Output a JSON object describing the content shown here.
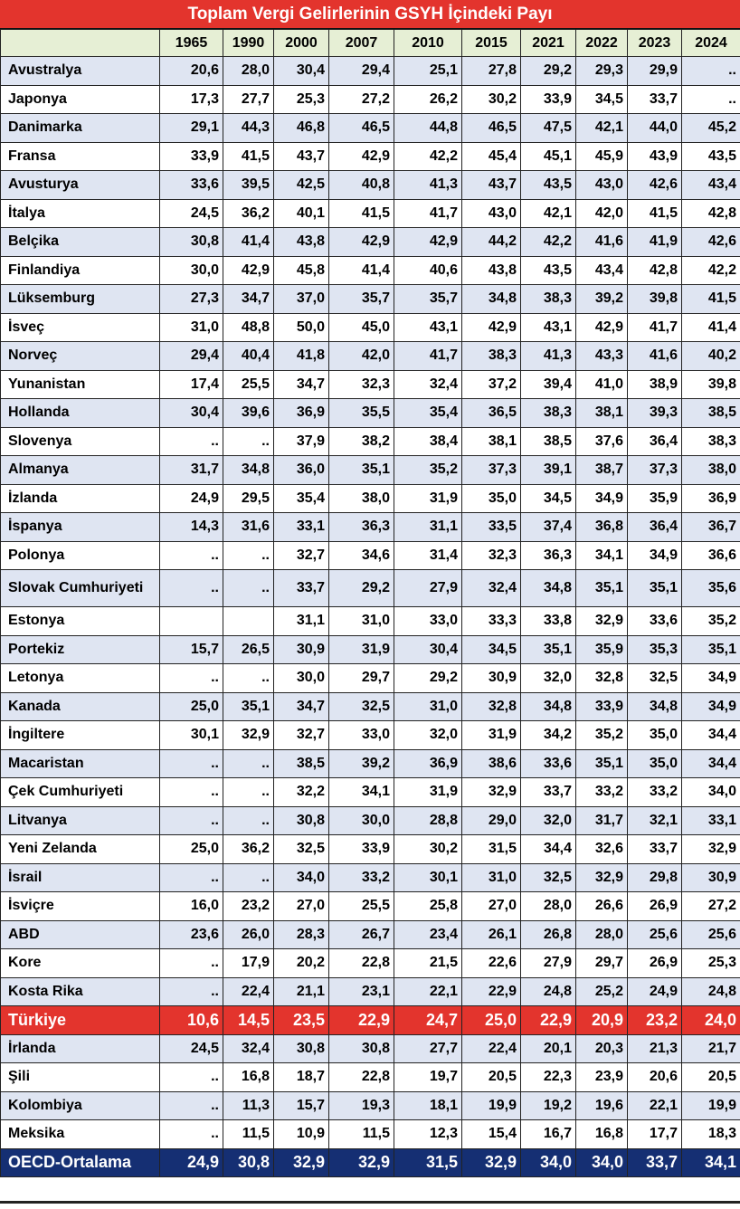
{
  "chart_data": {
    "type": "table",
    "title": "Toplam Vergi Gelirlerinin GSYH İçindeki Payı",
    "columns": [
      "1965",
      "1990",
      "2000",
      "2007",
      "2010",
      "2015",
      "2021",
      "2022",
      "2023",
      "2024"
    ],
    "rows": [
      {
        "country": "Avustralya",
        "values": [
          "20,6",
          "28,0",
          "30,4",
          "29,4",
          "25,1",
          "27,8",
          "29,2",
          "29,3",
          "29,9",
          ".."
        ]
      },
      {
        "country": "Japonya",
        "values": [
          "17,3",
          "27,7",
          "25,3",
          "27,2",
          "26,2",
          "30,2",
          "33,9",
          "34,5",
          "33,7",
          ".."
        ]
      },
      {
        "country": "Danimarka",
        "values": [
          "29,1",
          "44,3",
          "46,8",
          "46,5",
          "44,8",
          "46,5",
          "47,5",
          "42,1",
          "44,0",
          "45,2"
        ]
      },
      {
        "country": "Fransa",
        "values": [
          "33,9",
          "41,5",
          "43,7",
          "42,9",
          "42,2",
          "45,4",
          "45,1",
          "45,9",
          "43,9",
          "43,5"
        ]
      },
      {
        "country": "Avusturya",
        "values": [
          "33,6",
          "39,5",
          "42,5",
          "40,8",
          "41,3",
          "43,7",
          "43,5",
          "43,0",
          "42,6",
          "43,4"
        ]
      },
      {
        "country": "İtalya",
        "values": [
          "24,5",
          "36,2",
          "40,1",
          "41,5",
          "41,7",
          "43,0",
          "42,1",
          "42,0",
          "41,5",
          "42,8"
        ]
      },
      {
        "country": "Belçika",
        "values": [
          "30,8",
          "41,4",
          "43,8",
          "42,9",
          "42,9",
          "44,2",
          "42,2",
          "41,6",
          "41,9",
          "42,6"
        ]
      },
      {
        "country": "Finlandiya",
        "values": [
          "30,0",
          "42,9",
          "45,8",
          "41,4",
          "40,6",
          "43,8",
          "43,5",
          "43,4",
          "42,8",
          "42,2"
        ]
      },
      {
        "country": "Lüksemburg",
        "values": [
          "27,3",
          "34,7",
          "37,0",
          "35,7",
          "35,7",
          "34,8",
          "38,3",
          "39,2",
          "39,8",
          "41,5"
        ]
      },
      {
        "country": "İsveç",
        "values": [
          "31,0",
          "48,8",
          "50,0",
          "45,0",
          "43,1",
          "42,9",
          "43,1",
          "42,9",
          "41,7",
          "41,4"
        ]
      },
      {
        "country": "Norveç",
        "values": [
          "29,4",
          "40,4",
          "41,8",
          "42,0",
          "41,7",
          "38,3",
          "41,3",
          "43,3",
          "41,6",
          "40,2"
        ]
      },
      {
        "country": "Yunanistan",
        "values": [
          "17,4",
          "25,5",
          "34,7",
          "32,3",
          "32,4",
          "37,2",
          "39,4",
          "41,0",
          "38,9",
          "39,8"
        ]
      },
      {
        "country": "Hollanda",
        "values": [
          "30,4",
          "39,6",
          "36,9",
          "35,5",
          "35,4",
          "36,5",
          "38,3",
          "38,1",
          "39,3",
          "38,5"
        ]
      },
      {
        "country": "Slovenya",
        "values": [
          "..",
          "..",
          "37,9",
          "38,2",
          "38,4",
          "38,1",
          "38,5",
          "37,6",
          "36,4",
          "38,3"
        ]
      },
      {
        "country": "Almanya",
        "values": [
          "31,7",
          "34,8",
          "36,0",
          "35,1",
          "35,2",
          "37,3",
          "39,1",
          "38,7",
          "37,3",
          "38,0"
        ]
      },
      {
        "country": "İzlanda",
        "values": [
          "24,9",
          "29,5",
          "35,4",
          "38,0",
          "31,9",
          "35,0",
          "34,5",
          "34,9",
          "35,9",
          "36,9"
        ]
      },
      {
        "country": "İspanya",
        "values": [
          "14,3",
          "31,6",
          "33,1",
          "36,3",
          "31,1",
          "33,5",
          "37,4",
          "36,8",
          "36,4",
          "36,7"
        ]
      },
      {
        "country": "Polonya",
        "values": [
          "..",
          "..",
          "32,7",
          "34,6",
          "31,4",
          "32,3",
          "36,3",
          "34,1",
          "34,9",
          "36,6"
        ]
      },
      {
        "country": "Slovak Cumhuriyeti",
        "values": [
          "..",
          "..",
          "33,7",
          "29,2",
          "27,9",
          "32,4",
          "34,8",
          "35,1",
          "35,1",
          "35,6"
        ]
      },
      {
        "country": "Estonya",
        "values": [
          "",
          "",
          "31,1",
          "31,0",
          "33,0",
          "33,3",
          "33,8",
          "32,9",
          "33,6",
          "35,2"
        ]
      },
      {
        "country": "Portekiz",
        "values": [
          "15,7",
          "26,5",
          "30,9",
          "31,9",
          "30,4",
          "34,5",
          "35,1",
          "35,9",
          "35,3",
          "35,1"
        ]
      },
      {
        "country": "Letonya",
        "values": [
          "..",
          "..",
          "30,0",
          "29,7",
          "29,2",
          "30,9",
          "32,0",
          "32,8",
          "32,5",
          "34,9"
        ]
      },
      {
        "country": "Kanada",
        "values": [
          "25,0",
          "35,1",
          "34,7",
          "32,5",
          "31,0",
          "32,8",
          "34,8",
          "33,9",
          "34,8",
          "34,9"
        ]
      },
      {
        "country": "İngiltere",
        "values": [
          "30,1",
          "32,9",
          "32,7",
          "33,0",
          "32,0",
          "31,9",
          "34,2",
          "35,2",
          "35,0",
          "34,4"
        ]
      },
      {
        "country": "Macaristan",
        "values": [
          "..",
          "..",
          "38,5",
          "39,2",
          "36,9",
          "38,6",
          "33,6",
          "35,1",
          "35,0",
          "34,4"
        ]
      },
      {
        "country": "Çek Cumhuriyeti",
        "values": [
          "..",
          "..",
          "32,2",
          "34,1",
          "31,9",
          "32,9",
          "33,7",
          "33,2",
          "33,2",
          "34,0"
        ]
      },
      {
        "country": "Litvanya",
        "values": [
          "..",
          "..",
          "30,8",
          "30,0",
          "28,8",
          "29,0",
          "32,0",
          "31,7",
          "32,1",
          "33,1"
        ]
      },
      {
        "country": "Yeni Zelanda",
        "values": [
          "25,0",
          "36,2",
          "32,5",
          "33,9",
          "30,2",
          "31,5",
          "34,4",
          "32,6",
          "33,7",
          "32,9"
        ]
      },
      {
        "country": "İsrail",
        "values": [
          "..",
          "..",
          "34,0",
          "33,2",
          "30,1",
          "31,0",
          "32,5",
          "32,9",
          "29,8",
          "30,9"
        ]
      },
      {
        "country": "İsviçre",
        "values": [
          "16,0",
          "23,2",
          "27,0",
          "25,5",
          "25,8",
          "27,0",
          "28,0",
          "26,6",
          "26,9",
          "27,2"
        ]
      },
      {
        "country": "ABD",
        "values": [
          "23,6",
          "26,0",
          "28,3",
          "26,7",
          "23,4",
          "26,1",
          "26,8",
          "28,0",
          "25,6",
          "25,6"
        ]
      },
      {
        "country": "Kore",
        "values": [
          "..",
          "17,9",
          "20,2",
          "22,8",
          "21,5",
          "22,6",
          "27,9",
          "29,7",
          "26,9",
          "25,3"
        ]
      },
      {
        "country": "Kosta Rika",
        "values": [
          "..",
          "22,4",
          "21,1",
          "23,1",
          "22,1",
          "22,9",
          "24,8",
          "25,2",
          "24,9",
          "24,8"
        ]
      },
      {
        "country": "Türkiye",
        "values": [
          "10,6",
          "14,5",
          "23,5",
          "22,9",
          "24,7",
          "25,0",
          "22,9",
          "20,9",
          "23,2",
          "24,0"
        ],
        "highlight": true
      },
      {
        "country": "İrlanda",
        "values": [
          "24,5",
          "32,4",
          "30,8",
          "30,8",
          "27,7",
          "22,4",
          "20,1",
          "20,3",
          "21,3",
          "21,7"
        ]
      },
      {
        "country": "Şili",
        "values": [
          "..",
          "16,8",
          "18,7",
          "22,8",
          "19,7",
          "20,5",
          "22,3",
          "23,9",
          "20,6",
          "20,5"
        ]
      },
      {
        "country": "Kolombiya",
        "values": [
          "..",
          "11,3",
          "15,7",
          "19,3",
          "18,1",
          "19,9",
          "19,2",
          "19,6",
          "22,1",
          "19,9"
        ]
      },
      {
        "country": "Meksika",
        "values": [
          "..",
          "11,5",
          "10,9",
          "11,5",
          "12,3",
          "15,4",
          "16,7",
          "16,8",
          "17,7",
          "18,3"
        ]
      },
      {
        "country": "OECD-Ortalama",
        "values": [
          "24,9",
          "30,8",
          "32,9",
          "32,9",
          "31,5",
          "32,9",
          "34,0",
          "34,0",
          "33,7",
          "34,1"
        ],
        "average": true
      }
    ]
  },
  "colors": {
    "title_bg": "#e3342d",
    "header_bg": "#e6efd5",
    "band_odd": "#dfe5f2",
    "band_even": "#ffffff",
    "highlight_bg": "#e3342d",
    "average_bg": "#152f73"
  }
}
